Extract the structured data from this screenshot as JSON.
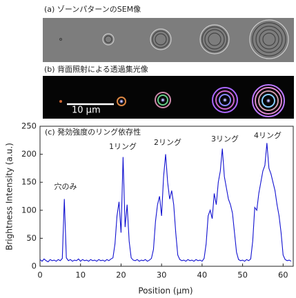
{
  "panels": {
    "a_label": "(a) ゾーンパターンのSEM像",
    "b_label": "(b) 背面照射による透過集光像",
    "scale_bar": "10 μm"
  },
  "chart_data": {
    "type": "line",
    "title": "(c) 発効強度のリング依存性",
    "x_label": "Position (μm)",
    "y_label": "Brightness Intensity (a.u.)",
    "annotations": [
      "穴のみ",
      "1リング",
      "2リング",
      "3リング",
      "4リング"
    ],
    "color": "#1010d0",
    "x": [
      0,
      0.5,
      1,
      1.5,
      2,
      2.5,
      3,
      3.5,
      4,
      4.5,
      5,
      5.5,
      6,
      6.5,
      7,
      7.5,
      8,
      8.5,
      9,
      9.5,
      10,
      10.5,
      11,
      11.5,
      12,
      12.5,
      13,
      13.5,
      14,
      14.5,
      15,
      15.5,
      16,
      16.5,
      17,
      17.5,
      18,
      18.5,
      19,
      19.5,
      20,
      20.5,
      21,
      21.5,
      22,
      22.5,
      23,
      23.5,
      24,
      24.5,
      25,
      25.5,
      26,
      26.5,
      27,
      27.5,
      28,
      28.5,
      29,
      29.5,
      30,
      30.5,
      31,
      31.5,
      32,
      32.5,
      33,
      33.5,
      34,
      34.5,
      35,
      35.5,
      36,
      36.5,
      37,
      37.5,
      38,
      38.5,
      39,
      39.5,
      40,
      40.5,
      41,
      41.5,
      42,
      42.5,
      43,
      43.5,
      44,
      44.5,
      45,
      45.5,
      46,
      46.5,
      47,
      47.5,
      48,
      48.5,
      49,
      49.5,
      50,
      50.5,
      51,
      51.5,
      52,
      52.5,
      53,
      53.5,
      54,
      54.5,
      55,
      55.5,
      56,
      56.5,
      57,
      57.5,
      58,
      58.5,
      59,
      59.5,
      60,
      60.5,
      61,
      61.5,
      62
    ],
    "values": [
      12,
      9,
      13,
      10,
      8,
      12,
      10,
      11,
      9,
      12,
      10,
      14,
      120,
      15,
      10,
      12,
      9,
      11,
      10,
      13,
      9,
      12,
      10,
      11,
      9,
      12,
      10,
      11,
      9,
      12,
      10,
      11,
      9,
      12,
      10,
      13,
      15,
      40,
      90,
      115,
      60,
      195,
      70,
      110,
      45,
      15,
      11,
      10,
      12,
      9,
      11,
      10,
      12,
      9,
      11,
      14,
      30,
      80,
      110,
      125,
      90,
      160,
      200,
      150,
      120,
      135,
      110,
      60,
      20,
      12,
      10,
      11,
      9,
      12,
      10,
      11,
      9,
      12,
      10,
      11,
      9,
      14,
      40,
      90,
      100,
      85,
      130,
      110,
      150,
      170,
      210,
      160,
      140,
      120,
      110,
      95,
      60,
      25,
      12,
      10,
      11,
      9,
      12,
      10,
      13,
      45,
      105,
      100,
      130,
      150,
      170,
      180,
      220,
      175,
      165,
      150,
      135,
      110,
      90,
      60,
      20,
      12,
      10,
      11,
      9
    ],
    "xlim": [
      0,
      62.5
    ],
    "xticks": [
      0,
      10,
      20,
      30,
      40,
      50,
      60
    ],
    "ylim": [
      0,
      250
    ],
    "yticks": [
      0,
      50,
      100,
      150,
      200,
      250
    ]
  }
}
